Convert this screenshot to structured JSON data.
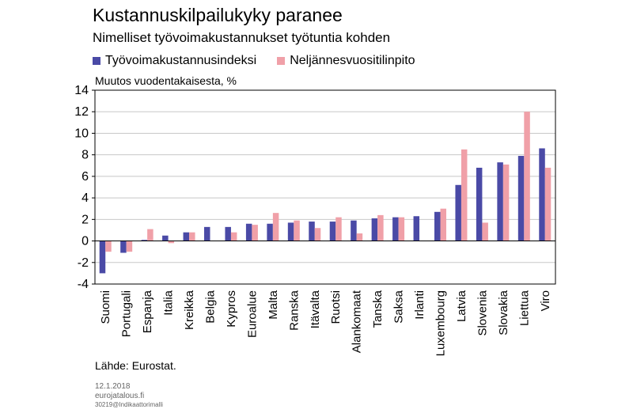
{
  "title": "Kustannuskilpailukyky paranee",
  "subtitle": "Nimelliset työvoimakustannukset työtuntia kohden",
  "unit_label": "Muutos vuodentakaisesta, %",
  "source": "Lähde: Eurostat.",
  "footer": {
    "date": "12.1.2018",
    "site": "eurojatalous.fi",
    "code": "30219@Indikaattorimalli"
  },
  "colors": {
    "series1": "#4a4aa6",
    "series2": "#f0a0a8",
    "axis": "#000000",
    "grid": "#c8c8c8"
  },
  "chart_data": {
    "type": "bar",
    "categories": [
      "Suomi",
      "Portugali",
      "Espanja",
      "Italia",
      "Kreikka",
      "Belgia",
      "Kypros",
      "Euroalue",
      "Malta",
      "Ranska",
      "Itävalta",
      "Ruotsi",
      "Alankomaat",
      "Tanska",
      "Saksa",
      "Irlanti",
      "Luxembourg",
      "Latvia",
      "Slovenia",
      "Slovakia",
      "Liettua",
      "Viro"
    ],
    "series": [
      {
        "name": "Työvoimakustannusindeksi",
        "color": "#4a4aa6",
        "values": [
          -3.0,
          -1.1,
          0.1,
          0.5,
          0.8,
          1.3,
          1.3,
          1.6,
          1.6,
          1.7,
          1.8,
          1.8,
          1.9,
          2.1,
          2.2,
          2.3,
          2.7,
          5.2,
          6.8,
          7.3,
          7.9,
          8.6
        ]
      },
      {
        "name": "Neljännesvuositilinpito",
        "color": "#f0a0a8",
        "values": [
          -1.0,
          -1.0,
          1.1,
          -0.2,
          0.8,
          null,
          0.8,
          1.5,
          2.6,
          1.9,
          1.2,
          2.2,
          0.7,
          2.4,
          2.2,
          null,
          3.0,
          8.5,
          1.7,
          7.1,
          12.0,
          6.8
        ]
      }
    ],
    "ylim": [
      -4,
      14
    ],
    "yticks": [
      -4,
      -2,
      0,
      2,
      4,
      6,
      8,
      10,
      12,
      14
    ],
    "grid": true,
    "legend_position": "top-left"
  }
}
